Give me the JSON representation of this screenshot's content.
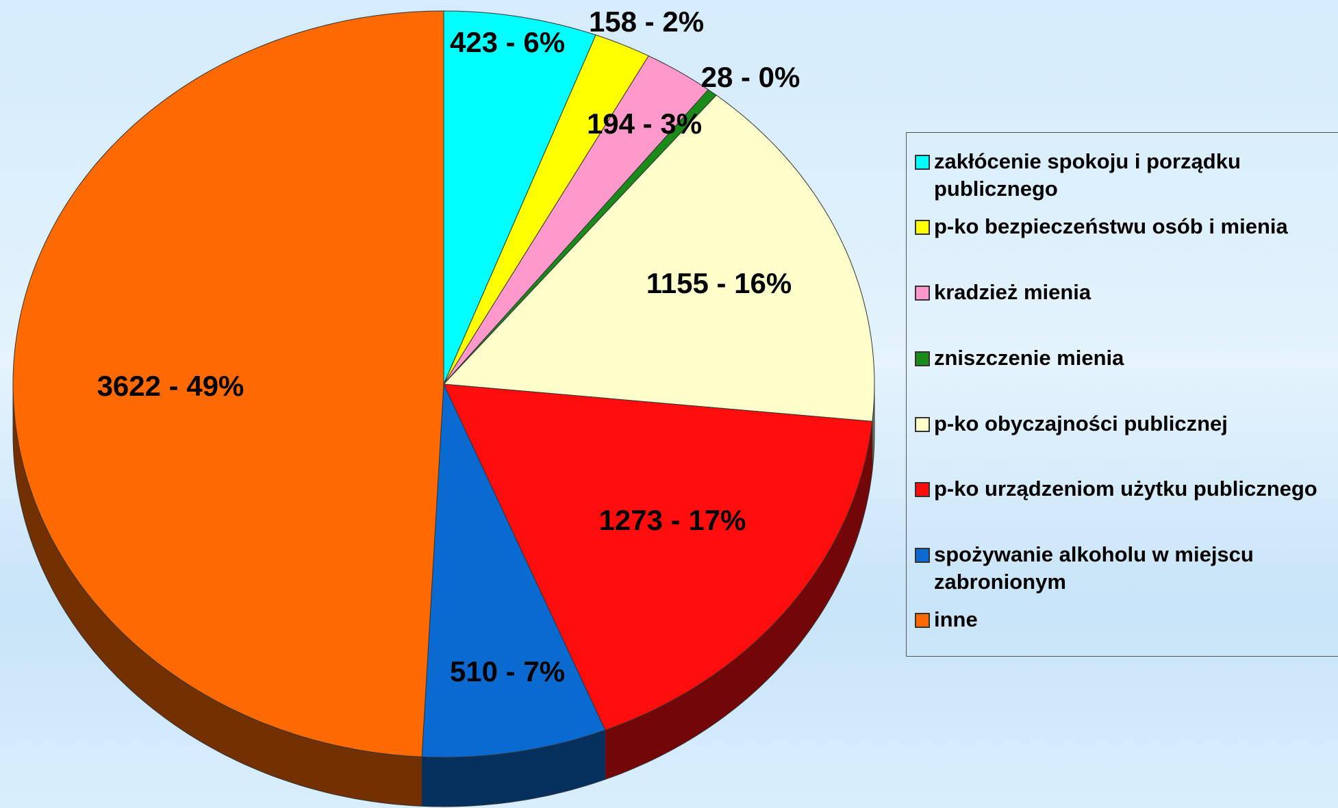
{
  "chart_data": {
    "type": "pie",
    "categories": [
      "zakłócenie spokoju i porządku publicznego",
      "p-ko bezpieczeństwu osób i mienia",
      "kradzież mienia",
      "zniszczenie mienia",
      "p-ko obyczajności publicznej",
      "p-ko urządzeniom użytku publicznego",
      "spożywanie alkoholu w miejscu zabronionym",
      "inne"
    ],
    "values": [
      423,
      158,
      194,
      28,
      1155,
      1273,
      510,
      3622
    ],
    "value_labels": [
      "423 - 6%",
      "158 - 2%",
      "194 - 3%",
      "28 - 0%",
      "1155 - 16%",
      "1273 - 17%",
      "510 - 7%",
      "3622 - 49%"
    ],
    "colors": [
      "#00ffff",
      "#ffff00",
      "#ff99cc",
      "#1a8a1a",
      "#ffffcc",
      "#ff0d0d",
      "#0a6ad0",
      "#ff6a00"
    ]
  }
}
